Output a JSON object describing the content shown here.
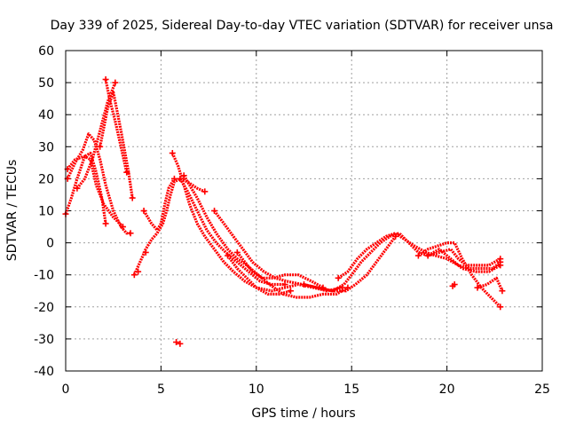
{
  "chart_data": {
    "type": "scatter",
    "title": "Day 339 of 2025, Sidereal Day-to-day VTEC variation (SDTVAR) for receiver unsa",
    "xlabel": "GPS time / hours",
    "ylabel": "SDTVAR / TECUs",
    "xlim": [
      0,
      25
    ],
    "ylim": [
      -40,
      60
    ],
    "xticks": [
      0,
      5,
      10,
      15,
      20,
      25
    ],
    "yticks": [
      -40,
      -30,
      -20,
      -10,
      0,
      10,
      20,
      30,
      40,
      50,
      60
    ],
    "grid": true,
    "marker": "+",
    "color": "#ff0000",
    "series": [
      {
        "name": "trace-1",
        "points": [
          [
            0.0,
            9
          ],
          [
            0.3,
            14
          ],
          [
            0.6,
            20
          ],
          [
            1.0,
            27
          ],
          [
            1.3,
            28
          ],
          [
            1.6,
            22
          ],
          [
            1.9,
            14
          ],
          [
            2.1,
            6
          ]
        ]
      },
      {
        "name": "trace-2",
        "points": [
          [
            0.1,
            20
          ],
          [
            0.5,
            25
          ],
          [
            0.9,
            29
          ],
          [
            1.2,
            34
          ],
          [
            1.5,
            32
          ],
          [
            1.8,
            26
          ],
          [
            2.1,
            18
          ],
          [
            2.5,
            10
          ],
          [
            2.9,
            5
          ],
          [
            3.2,
            3
          ],
          [
            3.4,
            3
          ]
        ]
      },
      {
        "name": "trace-3",
        "points": [
          [
            0.1,
            23
          ],
          [
            0.5,
            26
          ],
          [
            1.0,
            27
          ],
          [
            1.3,
            26
          ],
          [
            1.6,
            18
          ],
          [
            2.0,
            12
          ],
          [
            2.5,
            8
          ],
          [
            3.0,
            5
          ]
        ]
      },
      {
        "name": "trace-4",
        "points": [
          [
            0.6,
            17
          ],
          [
            1.0,
            20
          ],
          [
            1.4,
            26
          ],
          [
            1.8,
            35
          ],
          [
            2.2,
            44
          ],
          [
            2.6,
            50
          ]
        ]
      },
      {
        "name": "trace-5",
        "points": [
          [
            1.8,
            30
          ],
          [
            2.2,
            42
          ],
          [
            2.5,
            47
          ],
          [
            2.9,
            35
          ],
          [
            3.3,
            22
          ],
          [
            3.5,
            14
          ]
        ]
      },
      {
        "name": "trace-6",
        "points": [
          [
            2.1,
            51
          ],
          [
            2.3,
            45
          ],
          [
            2.6,
            38
          ],
          [
            2.9,
            30
          ],
          [
            3.2,
            22
          ]
        ]
      },
      {
        "name": "trace-7",
        "points": [
          [
            3.6,
            -10
          ],
          [
            3.9,
            -6
          ],
          [
            4.2,
            -2
          ],
          [
            4.5,
            1
          ],
          [
            4.8,
            3
          ],
          [
            5.1,
            6
          ],
          [
            5.3,
            10
          ],
          [
            5.5,
            15
          ],
          [
            5.7,
            19
          ],
          [
            6.0,
            20
          ],
          [
            6.4,
            19
          ],
          [
            6.9,
            17
          ],
          [
            7.3,
            16
          ]
        ]
      },
      {
        "name": "trace-8",
        "points": [
          [
            4.1,
            10
          ],
          [
            4.5,
            6
          ],
          [
            4.8,
            4
          ],
          [
            5.0,
            6
          ],
          [
            5.2,
            12
          ],
          [
            5.4,
            17
          ],
          [
            5.7,
            20
          ]
        ]
      },
      {
        "name": "trace-9",
        "points": [
          [
            5.6,
            28
          ],
          [
            5.9,
            24
          ],
          [
            6.2,
            18
          ],
          [
            6.5,
            12
          ],
          [
            6.9,
            6
          ],
          [
            7.3,
            2
          ],
          [
            7.8,
            -2
          ],
          [
            8.3,
            -6
          ],
          [
            8.8,
            -9
          ],
          [
            9.4,
            -12
          ],
          [
            10.0,
            -14
          ],
          [
            10.8,
            -15
          ],
          [
            11.5,
            -14
          ],
          [
            12.2,
            -13
          ],
          [
            13.0,
            -14
          ],
          [
            13.7,
            -15
          ],
          [
            14.5,
            -14
          ]
        ]
      },
      {
        "name": "trace-10",
        "points": [
          [
            6.0,
            20
          ],
          [
            6.4,
            16
          ],
          [
            6.9,
            10
          ],
          [
            7.4,
            4
          ],
          [
            7.9,
            0
          ],
          [
            8.4,
            -3
          ],
          [
            9.0,
            -6
          ],
          [
            9.6,
            -9
          ],
          [
            10.2,
            -12
          ],
          [
            10.8,
            -13
          ],
          [
            11.5,
            -13
          ]
        ]
      },
      {
        "name": "trace-11",
        "points": [
          [
            6.2,
            21
          ],
          [
            6.5,
            18
          ],
          [
            6.9,
            14
          ],
          [
            7.4,
            8
          ],
          [
            7.9,
            3
          ],
          [
            8.5,
            -2
          ],
          [
            9.0,
            -5
          ],
          [
            9.5,
            -7
          ],
          [
            10.1,
            -10
          ],
          [
            10.7,
            -13
          ],
          [
            11.4,
            -16
          ],
          [
            12.1,
            -17
          ],
          [
            12.8,
            -17
          ],
          [
            13.5,
            -16
          ],
          [
            14.2,
            -16
          ],
          [
            14.8,
            -14
          ]
        ]
      },
      {
        "name": "trace-12",
        "points": [
          [
            7.8,
            10
          ],
          [
            8.3,
            6
          ],
          [
            8.8,
            2
          ],
          [
            9.3,
            -2
          ],
          [
            9.8,
            -6
          ],
          [
            10.4,
            -9
          ],
          [
            11.0,
            -11
          ],
          [
            11.6,
            -12
          ],
          [
            12.4,
            -13
          ],
          [
            13.2,
            -14
          ],
          [
            14.0,
            -15
          ],
          [
            14.7,
            -15
          ],
          [
            15.2,
            -13
          ],
          [
            15.8,
            -10
          ],
          [
            16.3,
            -6
          ],
          [
            16.8,
            -2
          ],
          [
            17.3,
            2
          ]
        ]
      },
      {
        "name": "trace-13",
        "points": [
          [
            8.5,
            -4
          ],
          [
            9.0,
            -8
          ],
          [
            9.5,
            -11
          ],
          [
            10.0,
            -14
          ],
          [
            10.6,
            -16
          ],
          [
            11.2,
            -16
          ],
          [
            11.8,
            -15
          ]
        ]
      },
      {
        "name": "trace-14",
        "points": [
          [
            9.0,
            -3
          ],
          [
            9.4,
            -6
          ],
          [
            9.8,
            -9
          ],
          [
            10.3,
            -11
          ],
          [
            10.9,
            -11
          ],
          [
            11.5,
            -10
          ],
          [
            12.2,
            -10
          ],
          [
            12.9,
            -12
          ],
          [
            13.5,
            -14
          ]
        ]
      },
      {
        "name": "trace-15",
        "points": [
          [
            12.5,
            -13
          ],
          [
            13.2,
            -14
          ],
          [
            14.0,
            -15
          ],
          [
            14.6,
            -13
          ],
          [
            15.0,
            -10
          ],
          [
            15.5,
            -6
          ],
          [
            16.0,
            -3
          ],
          [
            16.5,
            0
          ],
          [
            17.0,
            2
          ],
          [
            17.5,
            3
          ],
          [
            18.0,
            0
          ],
          [
            18.5,
            -3
          ],
          [
            19.0,
            -4
          ],
          [
            19.6,
            -2
          ],
          [
            20.2,
            -5
          ],
          [
            20.8,
            -8
          ],
          [
            21.5,
            -9
          ],
          [
            22.2,
            -9
          ],
          [
            22.8,
            -7
          ]
        ]
      },
      {
        "name": "trace-16",
        "points": [
          [
            14.3,
            -11
          ],
          [
            14.8,
            -9
          ],
          [
            15.3,
            -5
          ],
          [
            15.8,
            -2
          ],
          [
            16.3,
            0
          ],
          [
            16.8,
            2
          ],
          [
            17.3,
            3
          ],
          [
            17.8,
            1
          ],
          [
            18.3,
            -1
          ],
          [
            18.9,
            -3
          ],
          [
            19.4,
            -4
          ],
          [
            20.0,
            -5
          ],
          [
            20.6,
            -7
          ],
          [
            21.2,
            -8
          ],
          [
            21.8,
            -8
          ],
          [
            22.4,
            -8
          ],
          [
            22.8,
            -6
          ]
        ]
      },
      {
        "name": "trace-17",
        "points": [
          [
            18.5,
            -4
          ],
          [
            19.0,
            -2
          ],
          [
            19.5,
            -1
          ],
          [
            20.0,
            0
          ],
          [
            20.4,
            0
          ],
          [
            20.8,
            -5
          ],
          [
            21.3,
            -10
          ],
          [
            21.8,
            -14
          ],
          [
            22.3,
            -17
          ],
          [
            22.8,
            -20
          ]
        ]
      },
      {
        "name": "trace-18",
        "points": [
          [
            19.0,
            -4
          ],
          [
            19.6,
            -3
          ],
          [
            20.2,
            -2
          ],
          [
            20.6,
            -5
          ],
          [
            21.0,
            -7
          ],
          [
            21.6,
            -7
          ],
          [
            22.2,
            -7
          ],
          [
            22.8,
            -5
          ]
        ]
      },
      {
        "name": "trace-19",
        "points": [
          [
            21.6,
            -14
          ],
          [
            22.1,
            -13
          ],
          [
            22.6,
            -11
          ],
          [
            22.9,
            -15
          ]
        ]
      }
    ],
    "isolated_points": [
      [
        5.8,
        -31
      ],
      [
        6.0,
        -31.5
      ],
      [
        20.3,
        -13.5
      ],
      [
        20.4,
        -13
      ],
      [
        4.2,
        -3
      ],
      [
        3.8,
        -9
      ]
    ]
  }
}
